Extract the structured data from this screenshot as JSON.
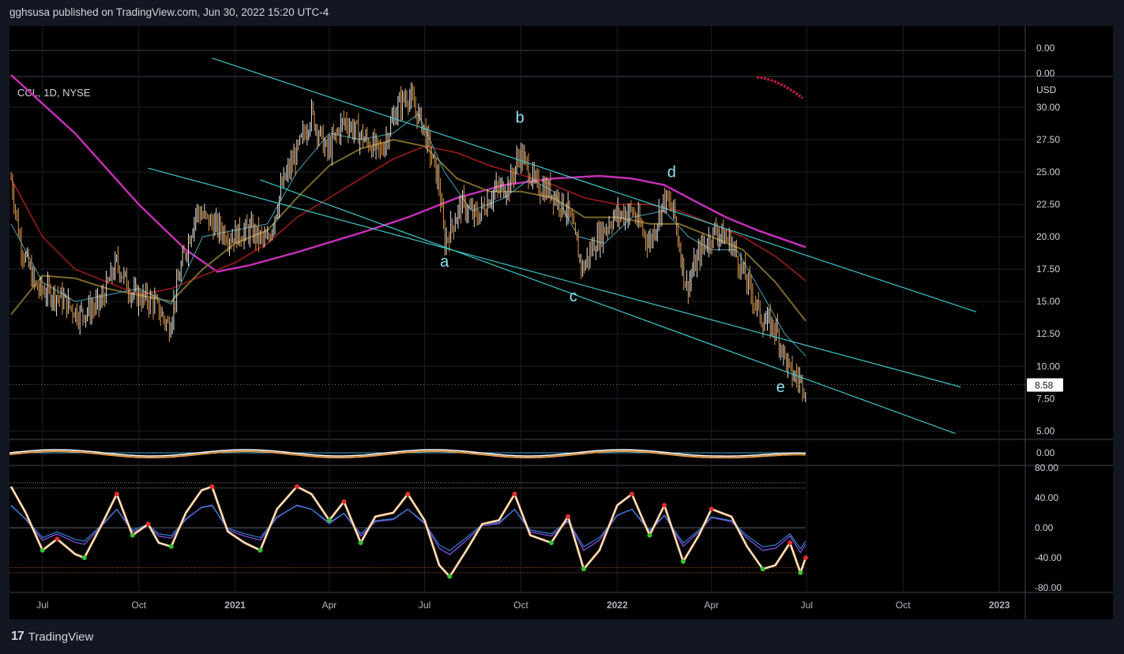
{
  "header": {
    "publisher_line": "gghsusa published on TradingView.com, Jun 30, 2022 15:20 UTC-4"
  },
  "footer": {
    "brand": "TradingView",
    "logo": "tv-logo-icon"
  },
  "chart_data": {
    "type": "candlestick",
    "symbol_label": "CCL, 1D, NYSE",
    "currency": "USD",
    "last_price": "8.58",
    "x_ticks": [
      "Jul",
      "Oct",
      "2021",
      "Apr",
      "Jul",
      "Oct",
      "2022",
      "Apr",
      "Jul",
      "Oct",
      "2023"
    ],
    "price_ticks": [
      "30.00",
      "27.50",
      "25.00",
      "22.50",
      "20.00",
      "17.50",
      "15.00",
      "12.50",
      "10.00",
      "7.50",
      "5.00"
    ],
    "price_range": [
      3.8,
      32.5
    ],
    "top_pane_ticks": [
      "0.00",
      "0.00"
    ],
    "mid_pane_ticks": [
      "0.00"
    ],
    "osc_ticks": [
      "80.00",
      "40.00",
      "0.00",
      "-40.00",
      "-80.00"
    ],
    "osc_range": [
      -80,
      80
    ],
    "osc_levels": [
      60,
      53,
      -53,
      -60
    ],
    "wave_labels": [
      {
        "text": "a",
        "date": "2021-07-20",
        "price": 17.7
      },
      {
        "text": "b",
        "date": "2021-09-30",
        "price": 28.8
      },
      {
        "text": "c",
        "date": "2021-11-20",
        "price": 15.0
      },
      {
        "text": "d",
        "date": "2022-02-22",
        "price": 24.6
      },
      {
        "text": "e",
        "date": "2022-06-06",
        "price": 8.0
      }
    ],
    "trend_lines": [
      {
        "from": [
          "2020-12-10",
          33.8
        ],
        "to": [
          "2022-12-10",
          14.2
        ]
      },
      {
        "from": [
          "2020-10-10",
          25.3
        ],
        "to": [
          "2022-11-25",
          8.4
        ]
      },
      {
        "from": [
          "2021-01-25",
          24.4
        ],
        "to": [
          "2022-11-20",
          4.8
        ]
      }
    ],
    "price_path": [
      [
        "2020-06-01",
        24.5
      ],
      [
        "2020-06-10",
        19.5
      ],
      [
        "2020-06-25",
        16.0
      ],
      [
        "2020-07-15",
        15.5
      ],
      [
        "2020-08-05",
        14.0
      ],
      [
        "2020-08-25",
        14.8
      ],
      [
        "2020-09-10",
        18.0
      ],
      [
        "2020-09-25",
        15.5
      ],
      [
        "2020-10-15",
        15.0
      ],
      [
        "2020-10-30",
        13.0
      ],
      [
        "2020-11-10",
        17.5
      ],
      [
        "2020-11-25",
        22.0
      ],
      [
        "2020-12-10",
        21.0
      ],
      [
        "2020-12-28",
        20.0
      ],
      [
        "2021-01-15",
        20.5
      ],
      [
        "2021-02-01",
        19.5
      ],
      [
        "2021-02-15",
        24.0
      ],
      [
        "2021-03-01",
        26.5
      ],
      [
        "2021-03-15",
        29.5
      ],
      [
        "2021-03-30",
        26.5
      ],
      [
        "2021-04-15",
        29.0
      ],
      [
        "2021-05-05",
        27.5
      ],
      [
        "2021-05-20",
        26.5
      ],
      [
        "2021-06-05",
        30.0
      ],
      [
        "2021-06-15",
        31.0
      ],
      [
        "2021-06-30",
        28.5
      ],
      [
        "2021-07-15",
        24.0
      ],
      [
        "2021-07-20",
        19.5
      ],
      [
        "2021-08-05",
        22.5
      ],
      [
        "2021-08-20",
        21.5
      ],
      [
        "2021-09-05",
        23.5
      ],
      [
        "2021-09-20",
        24.0
      ],
      [
        "2021-09-30",
        26.5
      ],
      [
        "2021-10-15",
        24.0
      ],
      [
        "2021-10-30",
        23.5
      ],
      [
        "2021-11-15",
        22.0
      ],
      [
        "2021-11-29",
        17.5
      ],
      [
        "2021-12-10",
        19.5
      ],
      [
        "2021-12-28",
        21.5
      ],
      [
        "2022-01-15",
        22.0
      ],
      [
        "2022-02-01",
        19.5
      ],
      [
        "2022-02-15",
        23.0
      ],
      [
        "2022-02-24",
        22.0
      ],
      [
        "2022-03-08",
        16.0
      ],
      [
        "2022-03-22",
        19.0
      ],
      [
        "2022-04-05",
        20.5
      ],
      [
        "2022-04-20",
        19.5
      ],
      [
        "2022-05-05",
        16.5
      ],
      [
        "2022-05-20",
        13.5
      ],
      [
        "2022-06-01",
        13.0
      ],
      [
        "2022-06-15",
        9.5
      ],
      [
        "2022-06-30",
        8.58
      ]
    ],
    "ma_fast": [
      [
        "2020-06-01",
        21.0
      ],
      [
        "2020-07-01",
        16.5
      ],
      [
        "2020-08-01",
        15.0
      ],
      [
        "2020-09-01",
        15.5
      ],
      [
        "2020-10-01",
        16.0
      ],
      [
        "2020-11-01",
        14.8
      ],
      [
        "2020-12-01",
        20.0
      ],
      [
        "2021-01-01",
        20.5
      ],
      [
        "2021-02-01",
        21.0
      ],
      [
        "2021-03-01",
        25.0
      ],
      [
        "2021-04-01",
        28.0
      ],
      [
        "2021-05-01",
        27.5
      ],
      [
        "2021-06-01",
        28.0
      ],
      [
        "2021-06-25",
        29.5
      ],
      [
        "2021-07-20",
        25.0
      ],
      [
        "2021-08-15",
        22.0
      ],
      [
        "2021-09-15",
        23.0
      ],
      [
        "2021-10-10",
        24.5
      ],
      [
        "2021-11-01",
        23.5
      ],
      [
        "2021-11-25",
        20.0
      ],
      [
        "2021-12-20",
        19.5
      ],
      [
        "2022-01-15",
        21.5
      ],
      [
        "2022-02-15",
        22.0
      ],
      [
        "2022-03-10",
        20.0
      ],
      [
        "2022-04-01",
        19.0
      ],
      [
        "2022-04-25",
        19.0
      ],
      [
        "2022-05-20",
        15.5
      ],
      [
        "2022-06-10",
        12.5
      ],
      [
        "2022-06-30",
        10.8
      ]
    ],
    "ma_mid": [
      [
        "2020-06-01",
        14.0
      ],
      [
        "2020-07-01",
        17.0
      ],
      [
        "2020-08-01",
        16.8
      ],
      [
        "2020-09-01",
        16.0
      ],
      [
        "2020-10-01",
        15.5
      ],
      [
        "2020-11-01",
        15.0
      ],
      [
        "2020-12-01",
        17.5
      ],
      [
        "2021-01-01",
        19.5
      ],
      [
        "2021-02-01",
        20.5
      ],
      [
        "2021-03-01",
        23.0
      ],
      [
        "2021-04-01",
        25.5
      ],
      [
        "2021-05-01",
        26.8
      ],
      [
        "2021-06-01",
        27.5
      ],
      [
        "2021-07-01",
        27.0
      ],
      [
        "2021-08-01",
        24.5
      ],
      [
        "2021-09-01",
        23.5
      ],
      [
        "2021-10-01",
        23.5
      ],
      [
        "2021-11-01",
        23.0
      ],
      [
        "2021-12-01",
        21.5
      ],
      [
        "2022-01-01",
        21.5
      ],
      [
        "2022-02-01",
        21.0
      ],
      [
        "2022-03-01",
        21.0
      ],
      [
        "2022-04-01",
        20.0
      ],
      [
        "2022-05-01",
        19.0
      ],
      [
        "2022-06-01",
        16.5
      ],
      [
        "2022-06-30",
        13.5
      ]
    ],
    "ma_slow": [
      [
        "2020-06-01",
        24.5
      ],
      [
        "2020-07-01",
        20.0
      ],
      [
        "2020-08-01",
        17.5
      ],
      [
        "2020-09-01",
        16.5
      ],
      [
        "2020-10-01",
        15.5
      ],
      [
        "2020-11-01",
        16.0
      ],
      [
        "2020-12-01",
        17.0
      ],
      [
        "2021-01-01",
        18.0
      ],
      [
        "2021-02-01",
        19.5
      ],
      [
        "2021-03-01",
        21.5
      ],
      [
        "2021-04-01",
        23.0
      ],
      [
        "2021-05-01",
        24.5
      ],
      [
        "2021-06-01",
        26.0
      ],
      [
        "2021-07-01",
        27.0
      ],
      [
        "2021-08-01",
        26.5
      ],
      [
        "2021-09-01",
        25.5
      ],
      [
        "2021-10-01",
        24.8
      ],
      [
        "2021-11-01",
        24.0
      ],
      [
        "2021-12-01",
        23.0
      ],
      [
        "2022-01-01",
        22.5
      ],
      [
        "2022-02-01",
        22.5
      ],
      [
        "2022-03-01",
        22.0
      ],
      [
        "2022-04-01",
        21.0
      ],
      [
        "2022-05-01",
        20.0
      ],
      [
        "2022-06-01",
        18.5
      ],
      [
        "2022-06-30",
        16.6
      ]
    ],
    "ma_long": [
      [
        "2020-06-01",
        32.5
      ],
      [
        "2020-08-01",
        28.0
      ],
      [
        "2020-10-01",
        22.5
      ],
      [
        "2020-11-15",
        19.0
      ],
      [
        "2020-12-15",
        17.3
      ],
      [
        "2021-01-15",
        17.8
      ],
      [
        "2021-03-01",
        18.8
      ],
      [
        "2021-05-01",
        20.3
      ],
      [
        "2021-06-15",
        21.5
      ],
      [
        "2021-08-01",
        23.0
      ],
      [
        "2021-09-15",
        24.0
      ],
      [
        "2021-11-01",
        24.5
      ],
      [
        "2021-12-15",
        24.7
      ],
      [
        "2022-01-15",
        24.5
      ],
      [
        "2022-02-15",
        24.0
      ],
      [
        "2022-03-15",
        22.8
      ],
      [
        "2022-04-15",
        21.5
      ],
      [
        "2022-05-15",
        20.5
      ],
      [
        "2022-06-30",
        19.2
      ]
    ],
    "oscillator": [
      [
        "2020-06-01",
        55
      ],
      [
        "2020-06-15",
        20
      ],
      [
        "2020-07-01",
        -30
      ],
      [
        "2020-07-15",
        -15
      ],
      [
        "2020-08-01",
        -35
      ],
      [
        "2020-08-10",
        -40
      ],
      [
        "2020-08-25",
        0
      ],
      [
        "2020-09-10",
        45
      ],
      [
        "2020-09-25",
        -10
      ],
      [
        "2020-10-10",
        5
      ],
      [
        "2020-10-20",
        -20
      ],
      [
        "2020-11-01",
        -25
      ],
      [
        "2020-11-15",
        20
      ],
      [
        "2020-11-30",
        50
      ],
      [
        "2020-12-10",
        55
      ],
      [
        "2020-12-25",
        -5
      ],
      [
        "2021-01-10",
        -20
      ],
      [
        "2021-01-25",
        -30
      ],
      [
        "2021-02-10",
        25
      ],
      [
        "2021-03-01",
        55
      ],
      [
        "2021-03-15",
        45
      ],
      [
        "2021-04-01",
        10
      ],
      [
        "2021-04-15",
        35
      ],
      [
        "2021-05-01",
        -20
      ],
      [
        "2021-05-15",
        15
      ],
      [
        "2021-06-01",
        20
      ],
      [
        "2021-06-15",
        45
      ],
      [
        "2021-07-01",
        10
      ],
      [
        "2021-07-15",
        -50
      ],
      [
        "2021-07-25",
        -65
      ],
      [
        "2021-08-10",
        -30
      ],
      [
        "2021-08-25",
        5
      ],
      [
        "2021-09-10",
        10
      ],
      [
        "2021-09-25",
        45
      ],
      [
        "2021-10-10",
        -10
      ],
      [
        "2021-10-30",
        -20
      ],
      [
        "2021-11-15",
        15
      ],
      [
        "2021-11-30",
        -55
      ],
      [
        "2021-12-15",
        -30
      ],
      [
        "2022-01-01",
        30
      ],
      [
        "2022-01-15",
        45
      ],
      [
        "2022-02-01",
        -10
      ],
      [
        "2022-02-15",
        30
      ],
      [
        "2022-03-05",
        -45
      ],
      [
        "2022-03-20",
        -10
      ],
      [
        "2022-04-01",
        25
      ],
      [
        "2022-04-20",
        15
      ],
      [
        "2022-05-05",
        -25
      ],
      [
        "2022-05-20",
        -55
      ],
      [
        "2022-06-01",
        -50
      ],
      [
        "2022-06-15",
        -20
      ],
      [
        "2022-06-25",
        -60
      ],
      [
        "2022-06-30",
        -40
      ]
    ]
  }
}
